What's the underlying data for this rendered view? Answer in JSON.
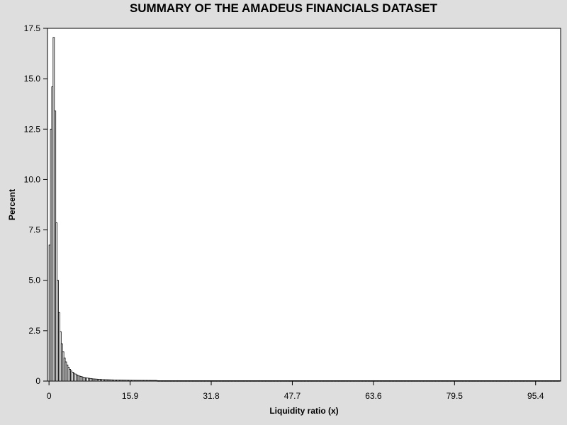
{
  "chart_data": {
    "type": "bar",
    "title": "SUMMARY OF THE AMADEUS FINANCIALS DATASET",
    "xlabel": "Liquidity ratio (x)",
    "ylabel": "Percent",
    "xlim": [
      -0.3,
      100.3
    ],
    "ylim": [
      0,
      17.5
    ],
    "x_ticks": [
      0,
      15.9,
      31.8,
      47.7,
      63.6,
      79.5,
      95.4
    ],
    "x_tick_labels": [
      "0",
      "15.9",
      "31.8",
      "47.7",
      "63.6",
      "79.5",
      "95.4"
    ],
    "y_ticks": [
      0,
      2.5,
      5.0,
      7.5,
      10.0,
      12.5,
      15.0,
      17.5
    ],
    "y_tick_labels": [
      "0",
      "2.5",
      "5.0",
      "7.5",
      "10.0",
      "12.5",
      "15.0",
      "17.5"
    ],
    "bin_width": 0.265,
    "grid": false,
    "legend": "none",
    "bar_fill": "#ffffff",
    "bar_stroke": "#000000",
    "series": [
      {
        "x_start": 0,
        "values": [
          6.75,
          12.5,
          14.6,
          17.05,
          13.4,
          7.85,
          5.0,
          3.4,
          2.45,
          1.85,
          1.45,
          1.15,
          0.95,
          0.8,
          0.68,
          0.58,
          0.5,
          0.44,
          0.39,
          0.35,
          0.31,
          0.28,
          0.25,
          0.23,
          0.21,
          0.19,
          0.17,
          0.16,
          0.15,
          0.14,
          0.13,
          0.12,
          0.11,
          0.105,
          0.1,
          0.095,
          0.09,
          0.085,
          0.08,
          0.075,
          0.072,
          0.07,
          0.068,
          0.066,
          0.064,
          0.062,
          0.06,
          0.058,
          0.056,
          0.054,
          0.052,
          0.05,
          0.049,
          0.048,
          0.047,
          0.046,
          0.045,
          0.044,
          0.043,
          0.042,
          0.041,
          0.04,
          0.04,
          0.039,
          0.039,
          0.038,
          0.038,
          0.037,
          0.037,
          0.036,
          0.036,
          0.035,
          0.035,
          0.034,
          0.034,
          0.033,
          0.033,
          0.032,
          0.032,
          0.031
        ],
        "tail_value": 0.02
      }
    ]
  }
}
